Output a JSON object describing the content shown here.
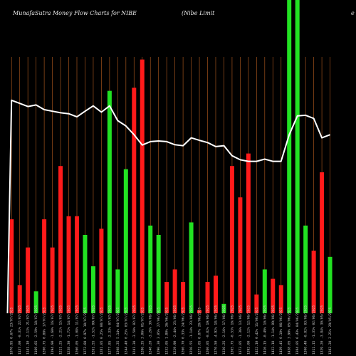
{
  "header": {
    "left": "MunafaSutra  Money Flow  Charts for NIBE",
    "middle": "(Nibe    Limit",
    "right": "e"
  },
  "colors": {
    "background": "#000000",
    "grid": "#a0521c",
    "up": "#22e222",
    "down": "#ff1a1a",
    "line": "#ffffff"
  },
  "chart_data": {
    "type": "bar",
    "title": "MunafaSutra  Money Flow  Charts for NIBE",
    "categories": [
      "1070.95 0.67% 23/07/2025",
      "1137.00 -0.31% 22/07/2025",
      "1141.10 -2.13% 21/07/2025",
      "1169.65 -2.59% 18/07/2025",
      "1200.75 0.88% 17/07/2025",
      "1194.90 -1.60% 16/07/2025",
      "1211.25 -2.21% 15/07/2025",
      "1238.30 -1.72% 14/07/2025",
      "1260.05 -1.08% 11/07/2025",
      "1273.80 0.97% 10/07/2025",
      "1261.55 -1.52% 09/07/2025",
      "1281.05 0.25% 08/07/2025",
      "1277.85 -2.33% 07/07/2025",
      "1308.35 5.14% 04/07/2025",
      "1244.40 0.25% 03/07/2025",
      "1241.30 -3.50% 02/07/2025",
      "1286.35 3.06% 01/07/2025",
      "1248.20 -3.26% 30/06/2025",
      "1290.30 3.05% 27/06/2025",
      "1252.05 1.80% 26/06/2025",
      "1229.90 -2.44% 25/06/2025",
      "1260.70 0.33% 24/06/2025",
      "1256.55 -1.14% 23/06/2025",
      "1271.05 0.87% 20/06/2025",
      "1260.05 -0.82% 19/06/2025",
      "1270.50 -4.92% 18/06/2025",
      "1336.25 -2.16% 17/06/2025",
      "1365.75 -0.53% 16/06/2025",
      "1373.05 -1.36% 13/06/2025",
      "1392.00 -2.12% 12/06/2025",
      "1422.10 0.42% 11/06/2025",
      "1416.15 -0.49% 10/06/2025",
      "1423.10 -1.14% 09/06/2025",
      "1439.45 0.10% 06/06/2025",
      "1438.05 3.90% 05/06/2025",
      "1384.05 6.43% 04/06/2025",
      "1300.40 -0.82% 03/06/2025",
      "1311.15 -1.35% 02/06/2025",
      "1329.20 -3.84% 30/05/2025",
      "1382.30 2.21% 29/05/2025"
    ],
    "bars": [
      {
        "value": 0.3,
        "color": "down"
      },
      {
        "value": 0.09,
        "color": "down"
      },
      {
        "value": 0.21,
        "color": "down"
      },
      {
        "value": 0.07,
        "color": "up"
      },
      {
        "value": 0.3,
        "color": "down"
      },
      {
        "value": 0.21,
        "color": "down"
      },
      {
        "value": 0.47,
        "color": "down"
      },
      {
        "value": 0.31,
        "color": "down"
      },
      {
        "value": 0.31,
        "color": "down"
      },
      {
        "value": 0.25,
        "color": "up"
      },
      {
        "value": 0.15,
        "color": "up"
      },
      {
        "value": 0.27,
        "color": "down"
      },
      {
        "value": 0.71,
        "color": "up"
      },
      {
        "value": 0.14,
        "color": "up"
      },
      {
        "value": 0.46,
        "color": "up"
      },
      {
        "value": 0.72,
        "color": "down"
      },
      {
        "value": 0.81,
        "color": "down"
      },
      {
        "value": 0.28,
        "color": "up"
      },
      {
        "value": 0.25,
        "color": "up"
      },
      {
        "value": 0.1,
        "color": "down"
      },
      {
        "value": 0.14,
        "color": "down"
      },
      {
        "value": 0.1,
        "color": "down"
      },
      {
        "value": 0.29,
        "color": "up"
      },
      {
        "value": 0.01,
        "color": "down"
      },
      {
        "value": 0.1,
        "color": "down"
      },
      {
        "value": 0.12,
        "color": "down"
      },
      {
        "value": 0.03,
        "color": "up"
      },
      {
        "value": 0.47,
        "color": "down"
      },
      {
        "value": 0.37,
        "color": "down"
      },
      {
        "value": 0.51,
        "color": "down"
      },
      {
        "value": 0.06,
        "color": "down"
      },
      {
        "value": 0.14,
        "color": "up"
      },
      {
        "value": 0.11,
        "color": "down"
      },
      {
        "value": 0.09,
        "color": "down"
      },
      {
        "value": 1.0,
        "color": "up"
      },
      {
        "value": 1.0,
        "color": "up"
      },
      {
        "value": 0.28,
        "color": "up"
      },
      {
        "value": 0.2,
        "color": "down"
      },
      {
        "value": 0.45,
        "color": "down"
      },
      {
        "value": 0.18,
        "color": "up"
      }
    ],
    "line_values": [
      0.68,
      0.67,
      0.66,
      0.665,
      0.65,
      0.645,
      0.64,
      0.637,
      0.627,
      0.645,
      0.662,
      0.642,
      0.662,
      0.615,
      0.598,
      0.57,
      0.537,
      0.548,
      0.55,
      0.548,
      0.538,
      0.535,
      0.56,
      0.552,
      0.545,
      0.532,
      0.535,
      0.503,
      0.49,
      0.485,
      0.485,
      0.492,
      0.485,
      0.485,
      0.57,
      0.63,
      0.632,
      0.622,
      0.56,
      0.57
    ],
    "ylim": [
      0,
      1
    ],
    "grid": true
  }
}
